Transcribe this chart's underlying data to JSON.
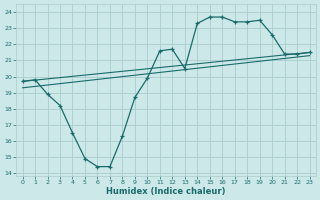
{
  "title": "",
  "xlabel": "Humidex (Indice chaleur)",
  "bg_color": "#cce8e8",
  "grid_color": "#aacccc",
  "line_color": "#1a6b6b",
  "xlim": [
    -0.5,
    23.5
  ],
  "ylim": [
    13.8,
    24.5
  ],
  "yticks": [
    14,
    15,
    16,
    17,
    18,
    19,
    20,
    21,
    22,
    23,
    24
  ],
  "xticks": [
    0,
    1,
    2,
    3,
    4,
    5,
    6,
    7,
    8,
    9,
    10,
    11,
    12,
    13,
    14,
    15,
    16,
    17,
    18,
    19,
    20,
    21,
    22,
    23
  ],
  "line1_x": [
    0,
    1,
    2,
    3,
    4,
    5,
    6,
    7,
    8,
    9,
    10,
    11,
    12,
    13,
    14,
    15,
    16,
    17,
    18,
    19,
    20,
    21,
    22,
    23
  ],
  "line1_y": [
    19.7,
    19.8,
    18.9,
    18.2,
    16.5,
    14.9,
    14.4,
    14.4,
    16.3,
    18.7,
    19.9,
    21.6,
    21.7,
    20.5,
    23.3,
    23.7,
    23.7,
    23.4,
    23.4,
    23.5,
    22.6,
    21.4,
    21.4,
    21.5
  ],
  "line2_x": [
    0,
    23
  ],
  "line2_y": [
    19.7,
    21.5
  ],
  "line3_x": [
    0,
    23
  ],
  "line3_y": [
    19.3,
    21.3
  ]
}
